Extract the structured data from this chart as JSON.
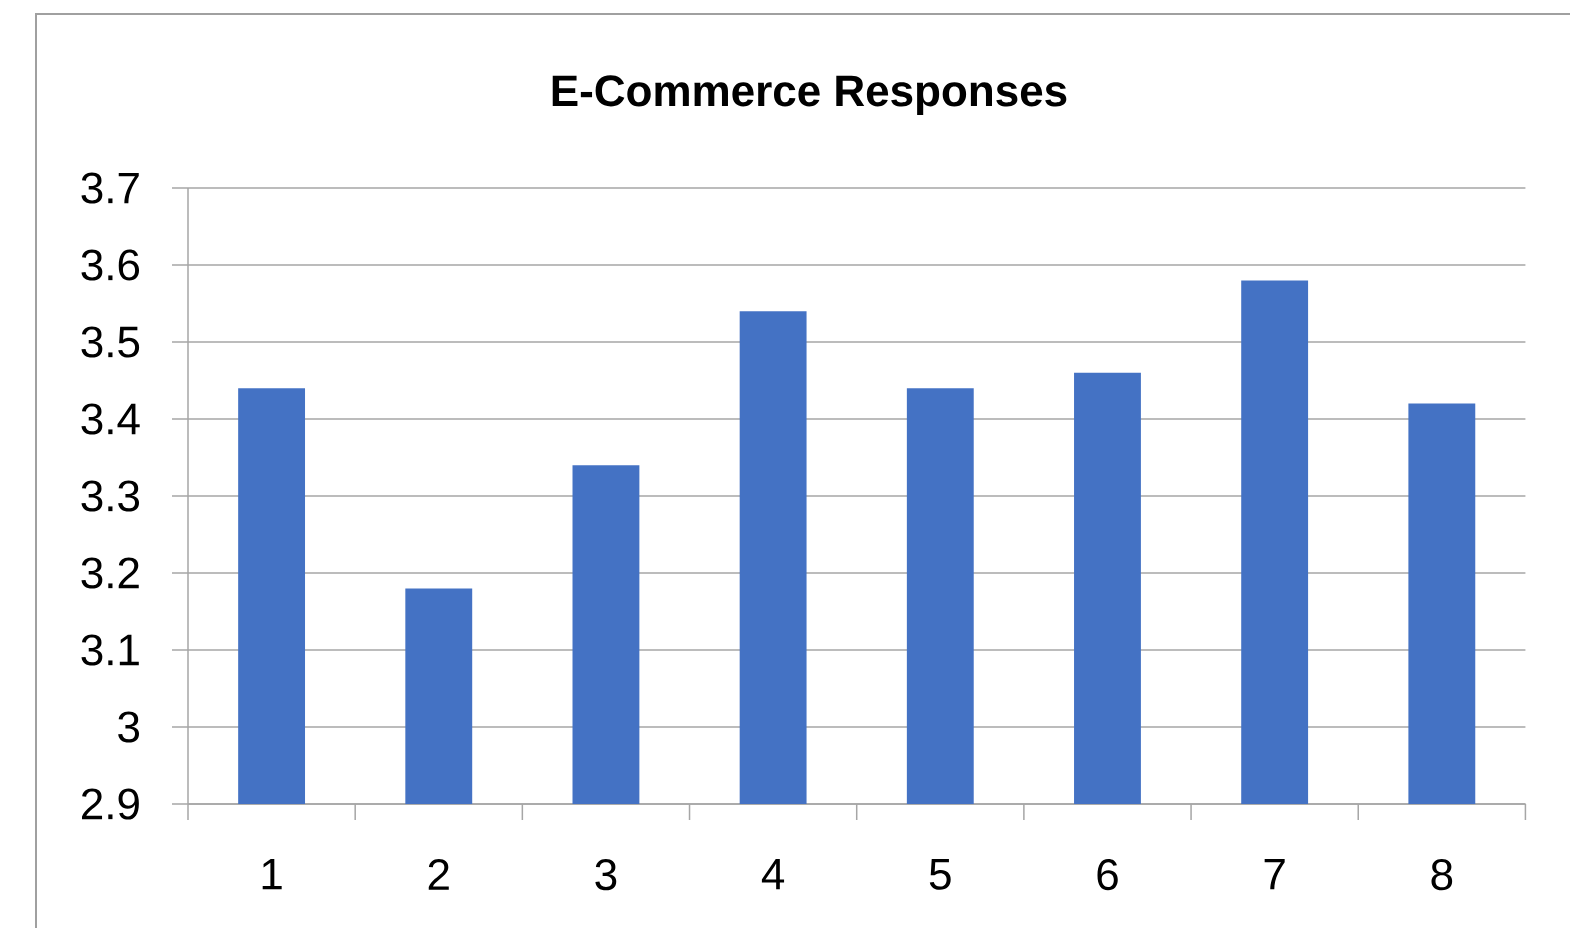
{
  "chart_data": {
    "type": "bar",
    "title": "E-Commerce Responses",
    "categories": [
      "1",
      "2",
      "3",
      "4",
      "5",
      "6",
      "7",
      "8"
    ],
    "values": [
      3.44,
      3.18,
      3.34,
      3.54,
      3.44,
      3.46,
      3.58,
      3.42
    ],
    "color": "#4472c4",
    "ylim": [
      2.9,
      3.7
    ],
    "yticks": [
      2.9,
      3,
      3.1,
      3.2,
      3.3,
      3.4,
      3.5,
      3.6,
      3.7
    ],
    "grid": "y"
  }
}
